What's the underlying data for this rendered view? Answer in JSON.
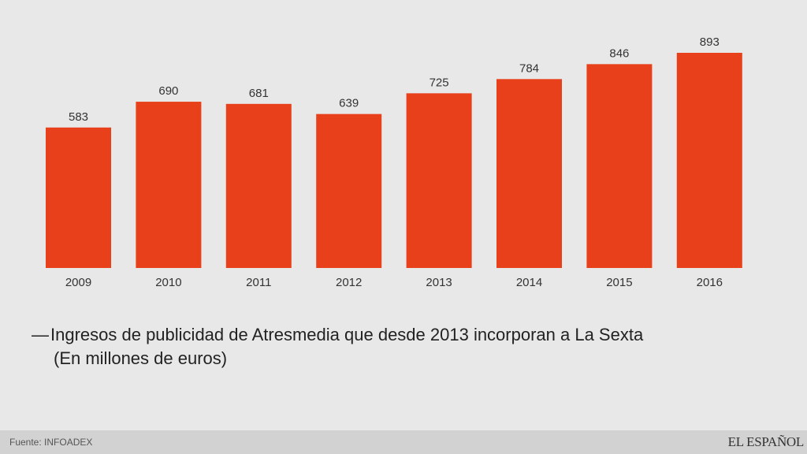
{
  "chart_data": {
    "type": "bar",
    "categories": [
      "2009",
      "2010",
      "2011",
      "2012",
      "2013",
      "2014",
      "2015",
      "2016"
    ],
    "values": [
      583,
      690,
      681,
      639,
      725,
      784,
      846,
      893
    ],
    "ylim": [
      0,
      893
    ],
    "grid": false,
    "bar_color": "#e8401a"
  },
  "caption": {
    "dash": "—",
    "line1": "Ingresos de publicidad de Atresmedia que desde 2013 incorporan a La Sexta",
    "line2": "(En millones de euros)"
  },
  "footer": {
    "source": "Fuente: INFOADEX",
    "brand": "EL ESPAÑOL"
  }
}
